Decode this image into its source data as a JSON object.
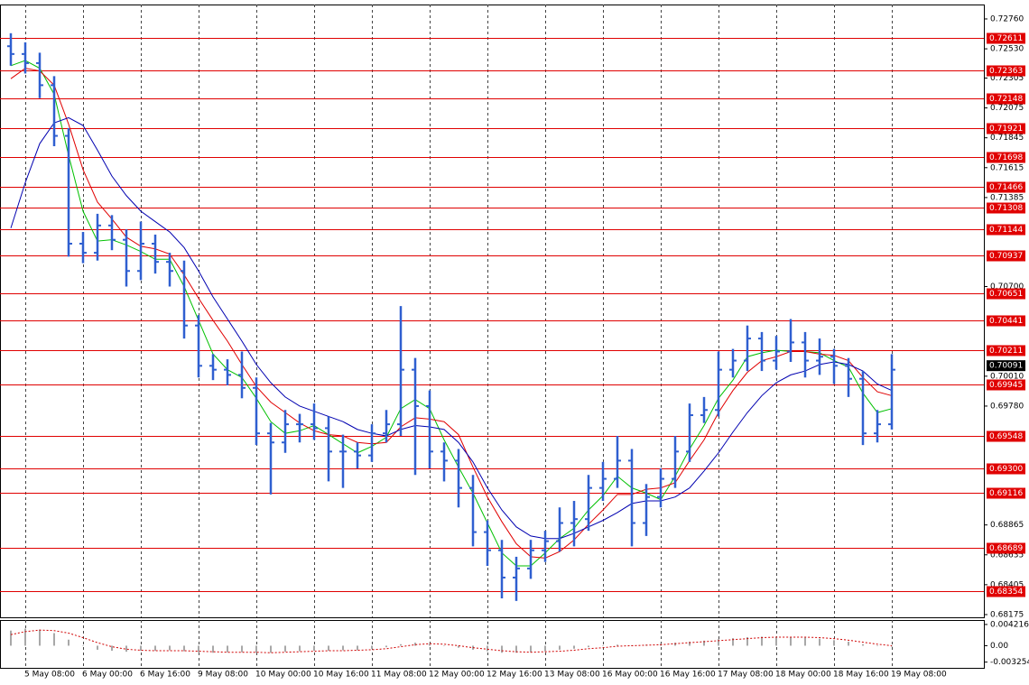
{
  "chart_data": {
    "type": "ohlc",
    "color": "#2f5fd0",
    "categories": [
      null,
      "5 May 08:00",
      null,
      null,
      null,
      "6 May 00:00",
      null,
      null,
      null,
      "6 May 16:00",
      null,
      null,
      null,
      "9 May 08:00",
      null,
      null,
      null,
      "10 May 00:00",
      null,
      null,
      null,
      "10 May 16:00",
      null,
      null,
      null,
      "11 May 08:00",
      null,
      null,
      null,
      "12 May 00:00",
      null,
      null,
      null,
      "12 May 16:00",
      null,
      null,
      null,
      "13 May 08:00",
      null,
      null,
      null,
      "16 May 00:00",
      null,
      null,
      null,
      "16 May 16:00",
      null,
      null,
      null,
      "17 May 08:00",
      null,
      null,
      null,
      "18 May 00:00",
      null,
      null,
      null,
      "18 May 16:00",
      null,
      null,
      null,
      "19 May 08:00"
    ],
    "open": [
      0.7255,
      0.7249,
      0.7242,
      0.7225,
      0.7186,
      0.7103,
      0.7096,
      0.7117,
      0.7106,
      0.7082,
      0.7103,
      0.7089,
      0.7082,
      0.704,
      0.7009,
      0.7006,
      0.7002,
      0.6992,
      0.6957,
      0.695,
      0.6964,
      0.6964,
      0.6961,
      0.6943,
      0.6943,
      0.694,
      0.6957,
      0.6964,
      0.7006,
      0.6978,
      0.6943,
      0.6936,
      0.6915,
      0.6881,
      0.6867,
      0.6846,
      0.6853,
      0.6867,
      0.6874,
      0.6888,
      0.6891,
      0.6915,
      0.6922,
      0.6936,
      0.6888,
      0.6908,
      0.6922,
      0.6943,
      0.6971,
      0.6975,
      0.7006,
      0.7013,
      0.703,
      0.7013,
      0.702,
      0.7027,
      0.7013,
      0.7016,
      0.7009,
      0.6999,
      0.6957,
      0.6964
    ],
    "high": [
      0.7265,
      0.7258,
      0.725,
      0.7232,
      0.7192,
      0.7112,
      0.7126,
      0.7125,
      0.7114,
      0.712,
      0.711,
      0.7096,
      0.709,
      0.7048,
      0.7018,
      0.7014,
      0.702,
      0.7,
      0.6965,
      0.6975,
      0.6972,
      0.698,
      0.697,
      0.6956,
      0.695,
      0.6964,
      0.6975,
      0.7055,
      0.7015,
      0.699,
      0.695,
      0.6945,
      0.6925,
      0.689,
      0.6875,
      0.6862,
      0.6875,
      0.6882,
      0.69,
      0.6905,
      0.6925,
      0.6935,
      0.6955,
      0.6945,
      0.6918,
      0.693,
      0.6955,
      0.698,
      0.6985,
      0.702,
      0.7022,
      0.704,
      0.7035,
      0.7032,
      0.7045,
      0.7035,
      0.703,
      0.7022,
      0.7015,
      0.7005,
      0.6975,
      0.7018
    ],
    "low": [
      0.724,
      0.7234,
      0.7215,
      0.7178,
      0.7093,
      0.7088,
      0.709,
      0.7098,
      0.707,
      0.7075,
      0.708,
      0.707,
      0.703,
      0.7,
      0.6998,
      0.6994,
      0.6984,
      0.6948,
      0.691,
      0.6942,
      0.695,
      0.6952,
      0.692,
      0.6915,
      0.693,
      0.6935,
      0.695,
      0.6955,
      0.6925,
      0.693,
      0.692,
      0.69,
      0.687,
      0.6855,
      0.683,
      0.6828,
      0.6845,
      0.6858,
      0.6866,
      0.687,
      0.6882,
      0.6905,
      0.6915,
      0.687,
      0.6878,
      0.69,
      0.6915,
      0.6935,
      0.6965,
      0.697,
      0.7,
      0.7005,
      0.7005,
      0.7006,
      0.7012,
      0.7,
      0.7002,
      0.6995,
      0.6985,
      0.6948,
      0.695,
      0.696
    ],
    "close": [
      0.7249,
      0.7242,
      0.7225,
      0.7186,
      0.7103,
      0.7096,
      0.7117,
      0.7106,
      0.7082,
      0.7103,
      0.7089,
      0.7082,
      0.704,
      0.7009,
      0.7006,
      0.7002,
      0.6992,
      0.6957,
      0.695,
      0.6964,
      0.6964,
      0.6961,
      0.6943,
      0.6943,
      0.694,
      0.6957,
      0.6964,
      0.7006,
      0.6978,
      0.6943,
      0.6936,
      0.6915,
      0.6881,
      0.6867,
      0.6846,
      0.6853,
      0.6867,
      0.6874,
      0.6888,
      0.6891,
      0.6915,
      0.6922,
      0.6936,
      0.6888,
      0.6908,
      0.6922,
      0.6943,
      0.6971,
      0.6975,
      0.7006,
      0.7013,
      0.703,
      0.7013,
      0.702,
      0.7027,
      0.7013,
      0.7016,
      0.7009,
      0.6999,
      0.6957,
      0.6964,
      0.7006
    ],
    "lines": [
      {
        "color": "#00c000",
        "values": [
          0.724,
          0.7244,
          0.7238,
          0.7218,
          0.7171,
          0.7128,
          0.7105,
          0.7106,
          0.7102,
          0.7097,
          0.7091,
          0.7091,
          0.707,
          0.7044,
          0.7018,
          0.7006,
          0.7,
          0.6984,
          0.6966,
          0.6957,
          0.6959,
          0.6963,
          0.6956,
          0.6949,
          0.6942,
          0.6947,
          0.6954,
          0.6976,
          0.6983,
          0.6976,
          0.6952,
          0.6931,
          0.6911,
          0.6888,
          0.6865,
          0.6855,
          0.6855,
          0.6865,
          0.6876,
          0.6884,
          0.6898,
          0.6909,
          0.6924,
          0.6915,
          0.6911,
          0.6906,
          0.6924,
          0.6945,
          0.6963,
          0.6984,
          0.6998,
          0.7016,
          0.7019,
          0.7021,
          0.702,
          0.702,
          0.7019,
          0.7013,
          0.7008,
          0.6988,
          0.6973,
          0.6976
        ]
      },
      {
        "color": "#e00000",
        "values": [
          0.723,
          0.7238,
          0.7236,
          0.7225,
          0.7195,
          0.716,
          0.7135,
          0.7122,
          0.7108,
          0.7101,
          0.7099,
          0.7095,
          0.7079,
          0.7061,
          0.7044,
          0.7028,
          0.701,
          0.6993,
          0.6981,
          0.6973,
          0.6965,
          0.6959,
          0.6956,
          0.6955,
          0.695,
          0.6949,
          0.695,
          0.6962,
          0.6969,
          0.6968,
          0.6966,
          0.6956,
          0.6931,
          0.6908,
          0.6889,
          0.6872,
          0.6862,
          0.6861,
          0.6866,
          0.6875,
          0.6887,
          0.6898,
          0.691,
          0.691,
          0.6914,
          0.6915,
          0.6919,
          0.6936,
          0.6952,
          0.6973,
          0.699,
          0.7004,
          0.7013,
          0.7016,
          0.702,
          0.702,
          0.7018,
          0.7017,
          0.7013,
          0.7,
          0.6989,
          0.6986
        ]
      },
      {
        "color": "#0000b0",
        "values": [
          0.7115,
          0.715,
          0.718,
          0.7196,
          0.72,
          0.7194,
          0.7175,
          0.7155,
          0.714,
          0.7128,
          0.712,
          0.7112,
          0.71,
          0.7082,
          0.7062,
          0.7045,
          0.7028,
          0.701,
          0.6996,
          0.6985,
          0.6978,
          0.6974,
          0.697,
          0.6966,
          0.696,
          0.6957,
          0.6955,
          0.696,
          0.6963,
          0.6962,
          0.696,
          0.695,
          0.6935,
          0.6915,
          0.6898,
          0.6885,
          0.6878,
          0.6876,
          0.6876,
          0.688,
          0.6885,
          0.689,
          0.6896,
          0.6903,
          0.6905,
          0.6905,
          0.6908,
          0.6915,
          0.6928,
          0.6942,
          0.6958,
          0.6973,
          0.6986,
          0.6996,
          0.7002,
          0.7005,
          0.701,
          0.7012,
          0.701,
          0.7005,
          0.6995,
          0.699
        ]
      }
    ],
    "ylim": [
      0.68154,
      0.72871
    ],
    "yticks": [
      {
        "value": 0.7276,
        "label": "0.72760"
      },
      {
        "value": 0.7253,
        "label": "0.72530"
      },
      0.72305,
      0.72075,
      0.71845,
      0.71615,
      0.71385,
      {
        "value": 0.707,
        "label": "0.70700"
      },
      {
        "value": 0.7001,
        "label": "0.70010"
      },
      {
        "value": 0.6978,
        "label": "0.69780"
      },
      0.68865,
      0.68635,
      0.68405,
      0.68175
    ],
    "level_color": "#e00000",
    "levels": [
      0.72611,
      0.72363,
      0.72148,
      0.71921,
      0.71698,
      0.71466,
      0.71308,
      0.71144,
      0.70937,
      0.70651,
      0.70441,
      0.70211,
      0.69945,
      0.69548,
      {
        "value": 0.693,
        "label": "0.69300"
      },
      0.69116,
      0.68689,
      0.68354
    ],
    "last": 0.70091,
    "grid": true,
    "oscillator": {
      "type": "bar",
      "color": "#a8a8a8",
      "values": [
        0.003,
        0.0034,
        0.0032,
        0.0025,
        0.0012,
        0.0,
        -0.0008,
        -0.001,
        -0.0012,
        -0.001,
        -0.001,
        -0.0009,
        -0.0011,
        -0.0013,
        -0.0014,
        -0.0013,
        -0.0013,
        -0.0014,
        -0.0014,
        -0.0012,
        -0.0011,
        -0.001,
        -0.001,
        -0.0009,
        -0.0009,
        -0.0006,
        -0.0003,
        0.0003,
        0.0006,
        0.0004,
        0.0,
        -0.0004,
        -0.0008,
        -0.0011,
        -0.0014,
        -0.0014,
        -0.0013,
        -0.0011,
        -0.0008,
        -0.0006,
        -0.0003,
        -0.0001,
        0.0002,
        0.0001,
        0.0002,
        0.0004,
        0.0006,
        0.0008,
        0.001,
        0.0013,
        0.0015,
        0.0017,
        0.0018,
        0.0018,
        0.0017,
        0.0016,
        0.0014,
        0.0011,
        0.0008,
        0.0003,
        -0.0001,
        -0.0002
      ],
      "signal": {
        "color": "#d00000",
        "values": [
          0.0022,
          0.0028,
          0.0031,
          0.003,
          0.0025,
          0.0016,
          0.0006,
          -0.0002,
          -0.0007,
          -0.0009,
          -0.001,
          -0.001,
          -0.001,
          -0.0011,
          -0.0012,
          -0.0013,
          -0.0013,
          -0.0013,
          -0.0014,
          -0.0013,
          -0.0012,
          -0.0011,
          -0.001,
          -0.001,
          -0.0009,
          -0.0008,
          -0.0006,
          -0.0002,
          0.0002,
          0.0004,
          0.0003,
          0.0,
          -0.0004,
          -0.0007,
          -0.001,
          -0.0012,
          -0.0013,
          -0.0012,
          -0.0011,
          -0.0009,
          -0.0006,
          -0.0004,
          -0.0001,
          0.0,
          0.0001,
          0.0002,
          0.0004,
          0.0006,
          0.0008,
          0.001,
          0.0012,
          0.0014,
          0.0016,
          0.0017,
          0.0017,
          0.0017,
          0.0016,
          0.0014,
          0.0011,
          0.0007,
          0.0003,
          0.0
        ]
      },
      "ylim": [
        -0.0044,
        0.0051
      ],
      "yticks": [
        0.004216,
        {
          "value": 0,
          "label": "0.00"
        },
        -0.003254
      ]
    }
  }
}
